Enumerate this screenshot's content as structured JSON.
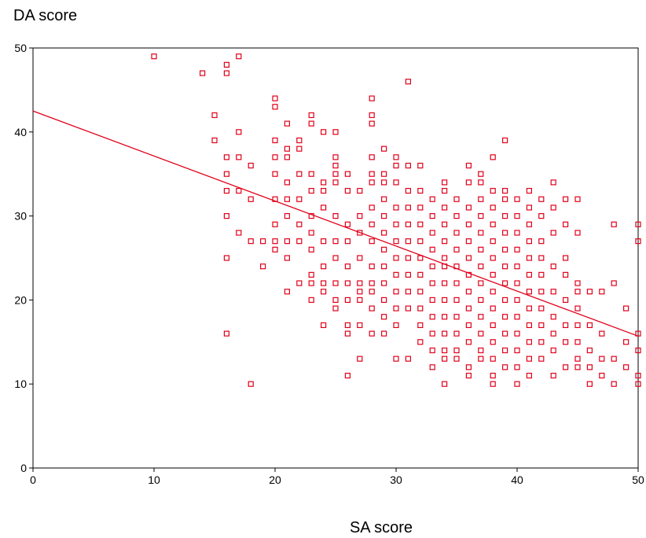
{
  "chart_data": {
    "type": "scatter",
    "title": "",
    "xlabel": "SA score",
    "ylabel": "DA score",
    "xlim": [
      0,
      50
    ],
    "ylim": [
      0,
      50
    ],
    "xticks": [
      0,
      10,
      20,
      30,
      40,
      50
    ],
    "yticks": [
      0,
      10,
      20,
      30,
      40,
      50
    ],
    "grid": false,
    "legend": "none",
    "marker": "hollow-square",
    "color": "#e0001a",
    "fit_line": {
      "x": [
        0,
        50
      ],
      "y": [
        42.5,
        15.7
      ]
    },
    "points": [
      [
        10,
        49
      ],
      [
        14,
        47
      ],
      [
        16,
        48
      ],
      [
        16,
        47
      ],
      [
        17,
        49
      ],
      [
        15,
        42
      ],
      [
        15,
        39
      ],
      [
        16,
        37
      ],
      [
        17,
        37
      ],
      [
        17,
        40
      ],
      [
        16,
        35
      ],
      [
        16,
        33
      ],
      [
        17,
        33
      ],
      [
        16,
        30
      ],
      [
        17,
        28
      ],
      [
        18,
        27
      ],
      [
        18,
        36
      ],
      [
        18,
        32
      ],
      [
        16,
        25
      ],
      [
        16,
        16
      ],
      [
        18,
        10
      ],
      [
        19,
        27
      ],
      [
        19,
        24
      ],
      [
        20,
        44
      ],
      [
        20,
        43
      ],
      [
        20,
        39
      ],
      [
        20,
        37
      ],
      [
        20,
        35
      ],
      [
        20,
        32
      ],
      [
        20,
        29
      ],
      [
        20,
        27
      ],
      [
        20,
        26
      ],
      [
        21,
        41
      ],
      [
        21,
        38
      ],
      [
        21,
        37
      ],
      [
        21,
        34
      ],
      [
        21,
        32
      ],
      [
        21,
        30
      ],
      [
        21,
        27
      ],
      [
        21,
        25
      ],
      [
        21,
        21
      ],
      [
        22,
        39
      ],
      [
        22,
        38
      ],
      [
        22,
        35
      ],
      [
        22,
        32
      ],
      [
        22,
        29
      ],
      [
        22,
        27
      ],
      [
        22,
        22
      ],
      [
        23,
        42
      ],
      [
        23,
        41
      ],
      [
        23,
        35
      ],
      [
        23,
        33
      ],
      [
        23,
        30
      ],
      [
        23,
        28
      ],
      [
        23,
        26
      ],
      [
        23,
        23
      ],
      [
        23,
        22
      ],
      [
        23,
        20
      ],
      [
        24,
        40
      ],
      [
        24,
        34
      ],
      [
        24,
        33
      ],
      [
        24,
        31
      ],
      [
        24,
        27
      ],
      [
        24,
        24
      ],
      [
        24,
        22
      ],
      [
        24,
        21
      ],
      [
        24,
        17
      ],
      [
        25,
        40
      ],
      [
        25,
        37
      ],
      [
        25,
        36
      ],
      [
        25,
        35
      ],
      [
        25,
        34
      ],
      [
        25,
        30
      ],
      [
        25,
        27
      ],
      [
        25,
        25
      ],
      [
        25,
        22
      ],
      [
        25,
        20
      ],
      [
        25,
        19
      ],
      [
        26,
        35
      ],
      [
        26,
        33
      ],
      [
        26,
        29
      ],
      [
        26,
        27
      ],
      [
        26,
        24
      ],
      [
        26,
        22
      ],
      [
        26,
        20
      ],
      [
        26,
        17
      ],
      [
        26,
        16
      ],
      [
        26,
        11
      ],
      [
        27,
        33
      ],
      [
        27,
        30
      ],
      [
        27,
        28
      ],
      [
        27,
        25
      ],
      [
        27,
        22
      ],
      [
        27,
        21
      ],
      [
        27,
        20
      ],
      [
        27,
        17
      ],
      [
        27,
        13
      ],
      [
        28,
        44
      ],
      [
        28,
        42
      ],
      [
        28,
        41
      ],
      [
        28,
        37
      ],
      [
        28,
        35
      ],
      [
        28,
        34
      ],
      [
        28,
        31
      ],
      [
        28,
        29
      ],
      [
        28,
        27
      ],
      [
        28,
        24
      ],
      [
        28,
        22
      ],
      [
        28,
        21
      ],
      [
        28,
        19
      ],
      [
        28,
        16
      ],
      [
        29,
        38
      ],
      [
        29,
        35
      ],
      [
        29,
        34
      ],
      [
        29,
        32
      ],
      [
        29,
        30
      ],
      [
        29,
        28
      ],
      [
        29,
        26
      ],
      [
        29,
        24
      ],
      [
        29,
        22
      ],
      [
        29,
        20
      ],
      [
        29,
        18
      ],
      [
        29,
        16
      ],
      [
        30,
        37
      ],
      [
        30,
        36
      ],
      [
        30,
        34
      ],
      [
        30,
        31
      ],
      [
        30,
        29
      ],
      [
        30,
        27
      ],
      [
        30,
        25
      ],
      [
        30,
        23
      ],
      [
        30,
        21
      ],
      [
        30,
        19
      ],
      [
        30,
        17
      ],
      [
        30,
        13
      ],
      [
        31,
        46
      ],
      [
        31,
        36
      ],
      [
        31,
        33
      ],
      [
        31,
        31
      ],
      [
        31,
        29
      ],
      [
        31,
        27
      ],
      [
        31,
        25
      ],
      [
        31,
        23
      ],
      [
        31,
        21
      ],
      [
        31,
        19
      ],
      [
        31,
        13
      ],
      [
        32,
        36
      ],
      [
        32,
        33
      ],
      [
        32,
        31
      ],
      [
        32,
        29
      ],
      [
        32,
        27
      ],
      [
        32,
        25
      ],
      [
        32,
        23
      ],
      [
        32,
        21
      ],
      [
        32,
        19
      ],
      [
        32,
        17
      ],
      [
        32,
        15
      ],
      [
        33,
        32
      ],
      [
        33,
        30
      ],
      [
        33,
        28
      ],
      [
        33,
        26
      ],
      [
        33,
        24
      ],
      [
        33,
        22
      ],
      [
        33,
        20
      ],
      [
        33,
        18
      ],
      [
        33,
        16
      ],
      [
        33,
        14
      ],
      [
        33,
        12
      ],
      [
        34,
        34
      ],
      [
        34,
        33
      ],
      [
        34,
        31
      ],
      [
        34,
        29
      ],
      [
        34,
        27
      ],
      [
        34,
        25
      ],
      [
        34,
        24
      ],
      [
        34,
        22
      ],
      [
        34,
        20
      ],
      [
        34,
        18
      ],
      [
        34,
        16
      ],
      [
        34,
        14
      ],
      [
        34,
        13
      ],
      [
        34,
        10
      ],
      [
        35,
        32
      ],
      [
        35,
        30
      ],
      [
        35,
        28
      ],
      [
        35,
        26
      ],
      [
        35,
        24
      ],
      [
        35,
        22
      ],
      [
        35,
        20
      ],
      [
        35,
        18
      ],
      [
        35,
        16
      ],
      [
        35,
        14
      ],
      [
        35,
        13
      ],
      [
        36,
        36
      ],
      [
        36,
        34
      ],
      [
        36,
        31
      ],
      [
        36,
        29
      ],
      [
        36,
        27
      ],
      [
        36,
        25
      ],
      [
        36,
        23
      ],
      [
        36,
        21
      ],
      [
        36,
        19
      ],
      [
        36,
        17
      ],
      [
        36,
        15
      ],
      [
        36,
        12
      ],
      [
        36,
        11
      ],
      [
        37,
        35
      ],
      [
        37,
        34
      ],
      [
        37,
        32
      ],
      [
        37,
        30
      ],
      [
        37,
        28
      ],
      [
        37,
        26
      ],
      [
        37,
        24
      ],
      [
        37,
        22
      ],
      [
        37,
        20
      ],
      [
        37,
        18
      ],
      [
        37,
        16
      ],
      [
        37,
        14
      ],
      [
        37,
        13
      ],
      [
        38,
        37
      ],
      [
        38,
        33
      ],
      [
        38,
        31
      ],
      [
        38,
        29
      ],
      [
        38,
        27
      ],
      [
        38,
        25
      ],
      [
        38,
        23
      ],
      [
        38,
        21
      ],
      [
        38,
        19
      ],
      [
        38,
        17
      ],
      [
        38,
        15
      ],
      [
        38,
        13
      ],
      [
        38,
        11
      ],
      [
        38,
        10
      ],
      [
        39,
        39
      ],
      [
        39,
        33
      ],
      [
        39,
        32
      ],
      [
        39,
        30
      ],
      [
        39,
        28
      ],
      [
        39,
        26
      ],
      [
        39,
        24
      ],
      [
        39,
        22
      ],
      [
        39,
        20
      ],
      [
        39,
        18
      ],
      [
        39,
        16
      ],
      [
        39,
        14
      ],
      [
        39,
        12
      ],
      [
        40,
        32
      ],
      [
        40,
        30
      ],
      [
        40,
        28
      ],
      [
        40,
        26
      ],
      [
        40,
        24
      ],
      [
        40,
        22
      ],
      [
        40,
        20
      ],
      [
        40,
        18
      ],
      [
        40,
        16
      ],
      [
        40,
        14
      ],
      [
        40,
        12
      ],
      [
        40,
        10
      ],
      [
        41,
        33
      ],
      [
        41,
        31
      ],
      [
        41,
        29
      ],
      [
        41,
        27
      ],
      [
        41,
        25
      ],
      [
        41,
        23
      ],
      [
        41,
        21
      ],
      [
        41,
        19
      ],
      [
        41,
        17
      ],
      [
        41,
        15
      ],
      [
        41,
        13
      ],
      [
        41,
        11
      ],
      [
        42,
        32
      ],
      [
        42,
        30
      ],
      [
        42,
        27
      ],
      [
        42,
        25
      ],
      [
        42,
        23
      ],
      [
        42,
        21
      ],
      [
        42,
        19
      ],
      [
        42,
        17
      ],
      [
        42,
        15
      ],
      [
        42,
        13
      ],
      [
        43,
        34
      ],
      [
        43,
        31
      ],
      [
        43,
        28
      ],
      [
        43,
        24
      ],
      [
        43,
        21
      ],
      [
        43,
        18
      ],
      [
        43,
        16
      ],
      [
        43,
        14
      ],
      [
        43,
        11
      ],
      [
        44,
        32
      ],
      [
        44,
        29
      ],
      [
        44,
        25
      ],
      [
        44,
        23
      ],
      [
        44,
        20
      ],
      [
        44,
        17
      ],
      [
        44,
        15
      ],
      [
        44,
        12
      ],
      [
        45,
        32
      ],
      [
        45,
        28
      ],
      [
        45,
        22
      ],
      [
        45,
        21
      ],
      [
        45,
        19
      ],
      [
        45,
        17
      ],
      [
        45,
        15
      ],
      [
        45,
        13
      ],
      [
        45,
        12
      ],
      [
        46,
        21
      ],
      [
        46,
        17
      ],
      [
        46,
        14
      ],
      [
        46,
        12
      ],
      [
        46,
        10
      ],
      [
        47,
        21
      ],
      [
        47,
        16
      ],
      [
        47,
        13
      ],
      [
        47,
        11
      ],
      [
        48,
        29
      ],
      [
        48,
        22
      ],
      [
        48,
        13
      ],
      [
        48,
        10
      ],
      [
        49,
        19
      ],
      [
        49,
        15
      ],
      [
        49,
        12
      ],
      [
        50,
        29
      ],
      [
        50,
        27
      ],
      [
        50,
        16
      ],
      [
        50,
        14
      ],
      [
        50,
        11
      ],
      [
        50,
        10
      ]
    ]
  }
}
